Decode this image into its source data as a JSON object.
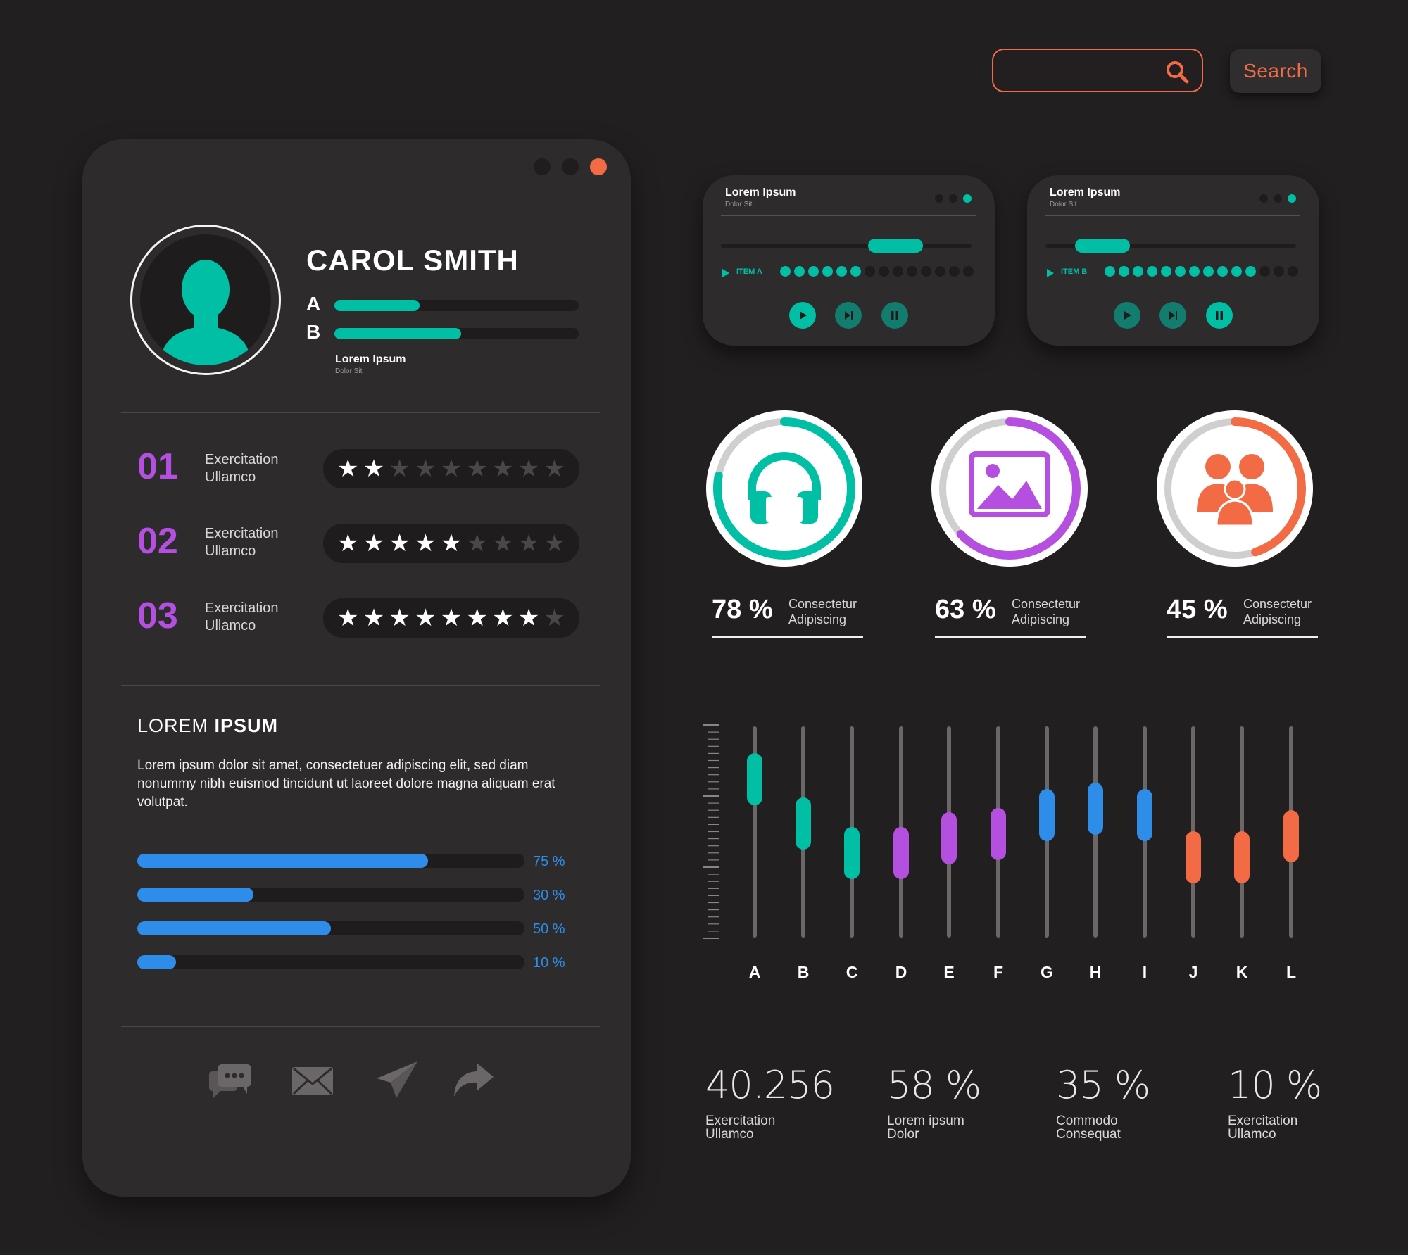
{
  "search": {
    "placeholder": "",
    "button_label": "Search"
  },
  "colors": {
    "background": "#221f20",
    "card": "#2d2b2c",
    "teal": "#00bfa5",
    "purple": "#b44fe0",
    "orange": "#f26b45",
    "blue": "#2d8de8"
  },
  "profile": {
    "name": "CAROL SMITH",
    "bars": [
      {
        "label": "A",
        "value": 0.35
      },
      {
        "label": "B",
        "value": 0.52
      }
    ],
    "subtitle_title": "Lorem Ipsum",
    "subtitle_sub": "Dolor Sit",
    "ratings": [
      {
        "num": "01",
        "line1": "Exercitation",
        "line2": "Ullamco",
        "stars": 2,
        "max": 9
      },
      {
        "num": "02",
        "line1": "Exercitation",
        "line2": "Ullamco",
        "stars": 5,
        "max": 9
      },
      {
        "num": "03",
        "line1": "Exercitation",
        "line2": "Ullamco",
        "stars": 8,
        "max": 9
      }
    ],
    "section_heading_light": "LOREM ",
    "section_heading_bold": "IPSUM",
    "paragraph": "Lorem ipsum dolor sit amet, consectetuer adipiscing elit, sed diam nonummy nibh euismod tincidunt ut laoreet dolore magna aliquam erat volutpat.",
    "progress": [
      {
        "value": 75,
        "label": "75 %"
      },
      {
        "value": 30,
        "label": "30 %"
      },
      {
        "value": 50,
        "label": "50 %"
      },
      {
        "value": 10,
        "label": "10 %"
      }
    ],
    "social_icons": [
      "chat-icon",
      "mail-icon",
      "send-icon",
      "share-icon"
    ]
  },
  "players": [
    {
      "title": "Lorem Ipsum",
      "sub": "Dolor Sit",
      "item": "ITEM A",
      "progress": 0.75,
      "level": 6,
      "segments": 14,
      "active": "play"
    },
    {
      "title": "Lorem Ipsum",
      "sub": "Dolor Sit",
      "item": "ITEM B",
      "progress": 0.15,
      "level": 11,
      "segments": 14,
      "active": "pause"
    }
  ],
  "circle_stats": [
    {
      "value": 78,
      "label": "78 %",
      "line1": "Consectetur",
      "line2": "Adipiscing",
      "color": "#00bfa5",
      "icon": "headphones-icon"
    },
    {
      "value": 63,
      "label": "63 %",
      "line1": "Consectetur",
      "line2": "Adipiscing",
      "color": "#b44fe0",
      "icon": "image-icon"
    },
    {
      "value": 45,
      "label": "45 %",
      "line1": "Consectetur",
      "line2": "Adipiscing",
      "color": "#f26b45",
      "icon": "users-icon"
    }
  ],
  "equalizer": {
    "letters": [
      "A",
      "B",
      "C",
      "D",
      "E",
      "F",
      "G",
      "H",
      "I",
      "J",
      "K",
      "L"
    ],
    "levels": [
      0.75,
      0.54,
      0.4,
      0.4,
      0.47,
      0.49,
      0.58,
      0.61,
      0.58,
      0.38,
      0.38,
      0.48
    ],
    "colors": [
      "#00bfa5",
      "#00bfa5",
      "#00bfa5",
      "#b44fe0",
      "#b44fe0",
      "#b44fe0",
      "#2d8de8",
      "#2d8de8",
      "#2d8de8",
      "#f26b45",
      "#f26b45",
      "#f26b45"
    ]
  },
  "bottom_stats": [
    {
      "value": "40.256",
      "line1": "Exercitation",
      "line2": "Ullamco"
    },
    {
      "value": "58 %",
      "line1": "Lorem ipsum",
      "line2": "Dolor"
    },
    {
      "value": "35 %",
      "line1": "Commodo",
      "line2": "Consequat"
    },
    {
      "value": "10 %",
      "line1": "Exercitation",
      "line2": "Ullamco"
    }
  ]
}
